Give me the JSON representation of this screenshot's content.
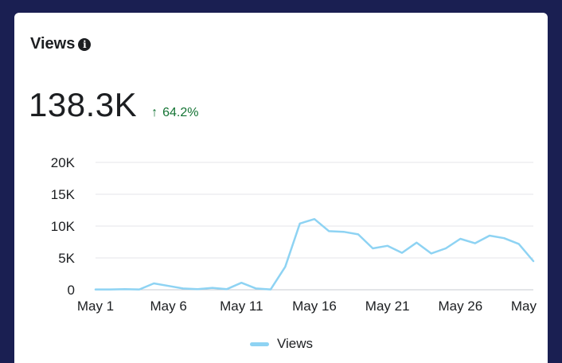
{
  "card": {
    "title": "Views",
    "info_icon": "info-circle-icon",
    "metric_value": "138.3K",
    "delta_arrow": "↑",
    "delta_value": "64.2%",
    "delta_color": "#137333"
  },
  "chart_data": {
    "type": "line",
    "title": "",
    "xlabel": "",
    "ylabel": "",
    "ylim": [
      0,
      20000
    ],
    "yticks": [
      0,
      5000,
      10000,
      15000,
      20000
    ],
    "ytick_labels": [
      "0",
      "5K",
      "10K",
      "15K",
      "20K"
    ],
    "x": [
      "May 1",
      "May 2",
      "May 3",
      "May 4",
      "May 5",
      "May 6",
      "May 7",
      "May 8",
      "May 9",
      "May 10",
      "May 11",
      "May 12",
      "May 13",
      "May 14",
      "May 15",
      "May 16",
      "May 17",
      "May 18",
      "May 19",
      "May 20",
      "May 21",
      "May 22",
      "May 23",
      "May 24",
      "May 25",
      "May 26",
      "May 27",
      "May 28",
      "May 29",
      "May 30",
      "May 31"
    ],
    "xtick_labels": [
      "May 1",
      "May 6",
      "May 11",
      "May 16",
      "May 21",
      "May 26",
      "May"
    ],
    "xtick_indices": [
      0,
      5,
      10,
      15,
      20,
      25,
      30
    ],
    "grid": true,
    "legend": "bottom-center",
    "series": [
      {
        "name": "Views",
        "color": "#8ed3f3",
        "values": [
          50,
          50,
          100,
          50,
          1000,
          600,
          200,
          100,
          300,
          100,
          1100,
          200,
          50,
          3600,
          10400,
          11100,
          9200,
          9100,
          8700,
          6500,
          6900,
          5800,
          7400,
          5700,
          6500,
          8000,
          7300,
          8500,
          8100,
          7200,
          4500
        ]
      }
    ]
  }
}
